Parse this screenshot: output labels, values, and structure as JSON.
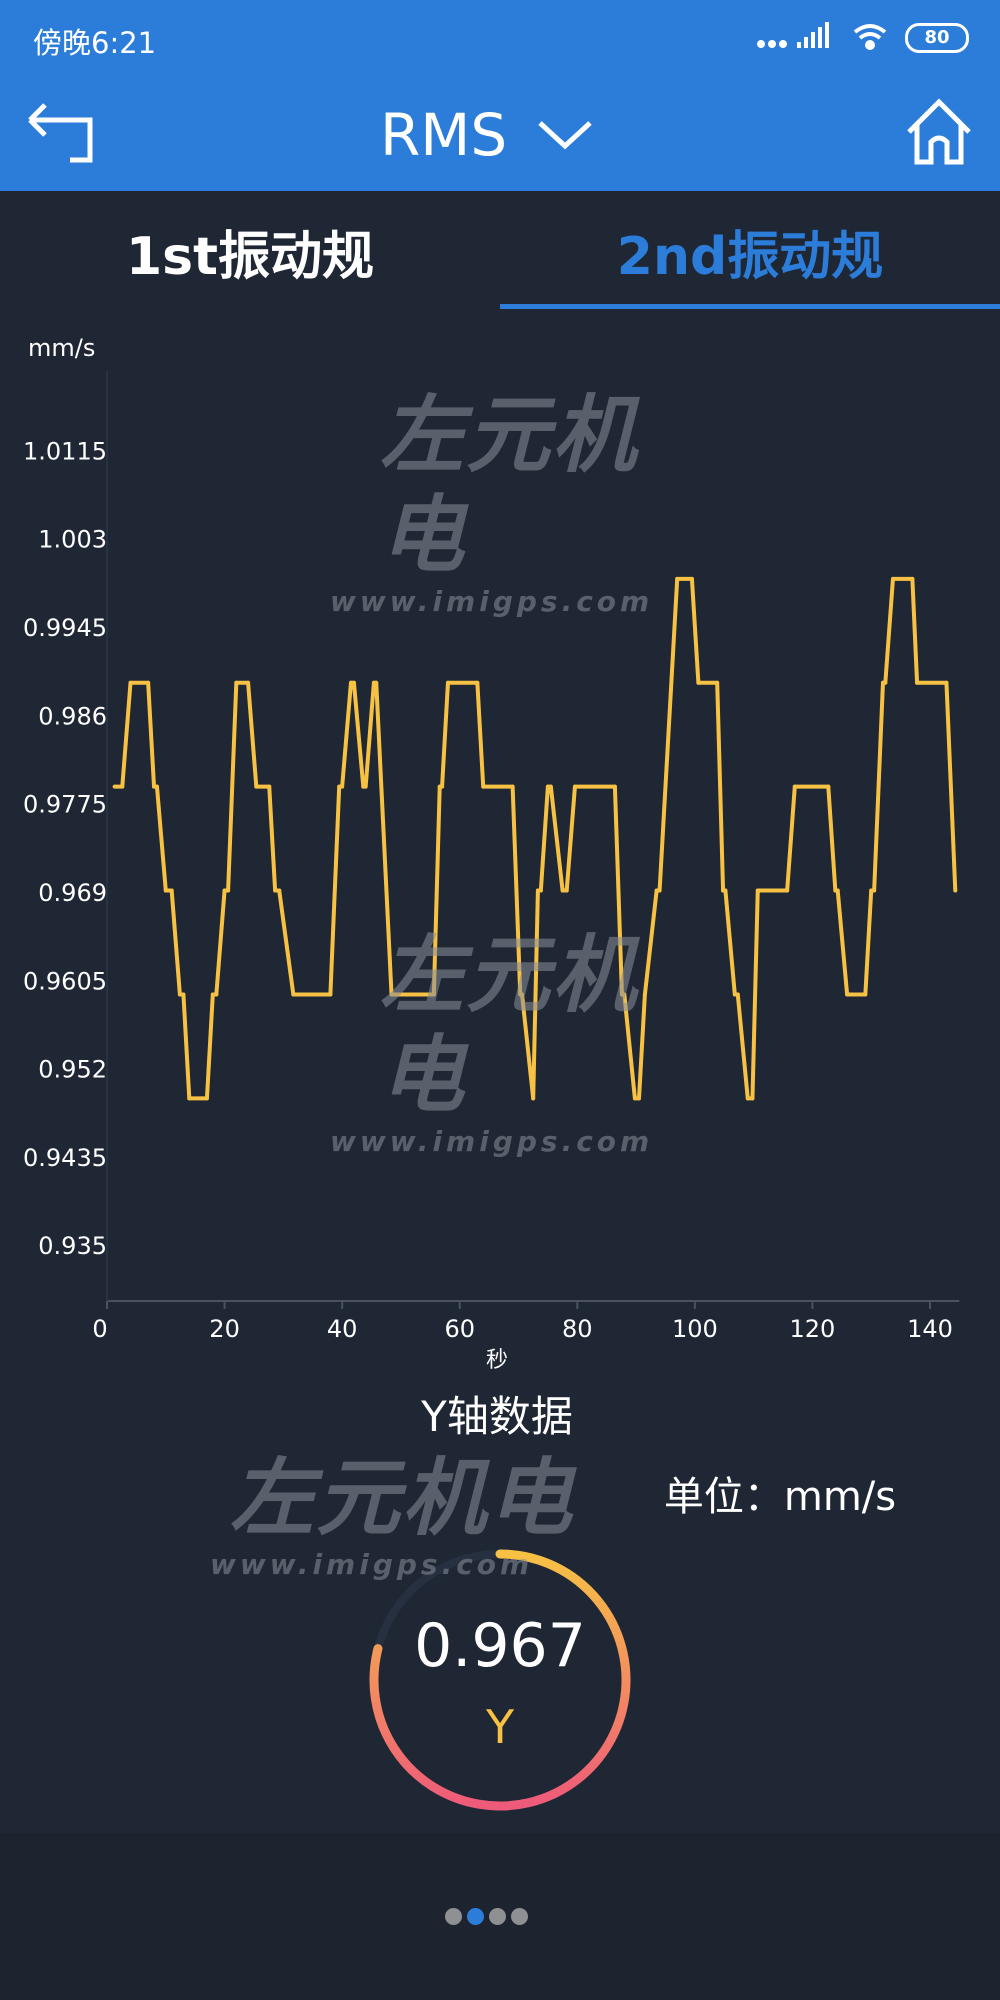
{
  "status_bar": {
    "time": "傍晚6:21",
    "battery": "80",
    "icons": [
      "dots-icon",
      "signal-icon",
      "wifi-icon",
      "battery-icon"
    ]
  },
  "header": {
    "title": "RMS",
    "back_icon": "back-arrow-icon",
    "dropdown_icon": "chevron-down-icon",
    "home_icon": "home-icon"
  },
  "tabs": [
    {
      "label": "1st振动规",
      "active": false
    },
    {
      "label": "2nd振动规",
      "active": true
    }
  ],
  "watermark": {
    "brand": "左元机电",
    "url": "www.imigps.com"
  },
  "colors": {
    "accent": "#2b7dd9",
    "line": "#f7c244",
    "background": "#1f2734",
    "gauge_start": "#f7c244",
    "gauge_end": "#ee5a7a"
  },
  "chart_data": {
    "type": "line",
    "ylabel": "mm/s",
    "xlabel": "秒",
    "title": "Y轴数据",
    "xlim": [
      0,
      145
    ],
    "ylim": [
      0.9305,
      1.02
    ],
    "xticks": [
      "0",
      "20",
      "40",
      "60",
      "80",
      "100",
      "120",
      "140"
    ],
    "yticks": [
      "1.0115",
      "1.003",
      "0.9945",
      "0.986",
      "0.9775",
      "0.969",
      "0.9605",
      "0.952",
      "0.9435",
      "0.935"
    ],
    "grid": false,
    "series": [
      {
        "points": [
          [
            1.3,
            0.98
          ],
          [
            2.6,
            0.98
          ],
          [
            4,
            0.99
          ],
          [
            7,
            0.99
          ],
          [
            8,
            0.98
          ],
          [
            8.5,
            0.98
          ],
          [
            10,
            0.97
          ],
          [
            11,
            0.97
          ],
          [
            12.4,
            0.96
          ],
          [
            13,
            0.96
          ],
          [
            14,
            0.95
          ],
          [
            17,
            0.95
          ],
          [
            18,
            0.96
          ],
          [
            18.6,
            0.96
          ],
          [
            20,
            0.97
          ],
          [
            20.6,
            0.97
          ],
          [
            22,
            0.99
          ],
          [
            24,
            0.99
          ],
          [
            25.4,
            0.98
          ],
          [
            27.6,
            0.98
          ],
          [
            28.6,
            0.97
          ],
          [
            29.3,
            0.97
          ],
          [
            31.7,
            0.96
          ],
          [
            38,
            0.96
          ],
          [
            39.5,
            0.98
          ],
          [
            40,
            0.98
          ],
          [
            41.5,
            0.99
          ],
          [
            42,
            0.99
          ],
          [
            43.6,
            0.98
          ],
          [
            44,
            0.98
          ],
          [
            45.4,
            0.99
          ],
          [
            45.8,
            0.99
          ],
          [
            48.4,
            0.96
          ],
          [
            55.6,
            0.96
          ],
          [
            56.6,
            0.98
          ],
          [
            57,
            0.98
          ],
          [
            58,
            0.99
          ],
          [
            63,
            0.99
          ],
          [
            64,
            0.98
          ],
          [
            69,
            0.98
          ],
          [
            70.3,
            0.96
          ],
          [
            70.6,
            0.96
          ],
          [
            72.5,
            0.95
          ],
          [
            73.3,
            0.97
          ],
          [
            73.8,
            0.97
          ],
          [
            75,
            0.98
          ],
          [
            75.5,
            0.98
          ],
          [
            77.5,
            0.97
          ],
          [
            78.2,
            0.97
          ],
          [
            79.6,
            0.98
          ],
          [
            86.4,
            0.98
          ],
          [
            87.6,
            0.96
          ],
          [
            88,
            0.96
          ],
          [
            89.8,
            0.95
          ],
          [
            90.5,
            0.95
          ],
          [
            91.5,
            0.96
          ],
          [
            93.5,
            0.97
          ],
          [
            94,
            0.97
          ],
          [
            97,
            1.0
          ],
          [
            99.5,
            1.0
          ],
          [
            100.6,
            0.99
          ],
          [
            103.8,
            0.99
          ],
          [
            104.8,
            0.97
          ],
          [
            105.2,
            0.97
          ],
          [
            106.8,
            0.96
          ],
          [
            107.3,
            0.96
          ],
          [
            109,
            0.95
          ],
          [
            109.8,
            0.95
          ],
          [
            110.7,
            0.97
          ],
          [
            115.7,
            0.97
          ],
          [
            117,
            0.98
          ],
          [
            122.7,
            0.98
          ],
          [
            123.9,
            0.97
          ],
          [
            124.3,
            0.97
          ],
          [
            125.9,
            0.96
          ],
          [
            129,
            0.96
          ],
          [
            130,
            0.97
          ],
          [
            130.5,
            0.97
          ],
          [
            132,
            0.99
          ],
          [
            132.4,
            0.99
          ],
          [
            133.7,
            1.0
          ],
          [
            137,
            1.0
          ],
          [
            137.8,
            0.99
          ],
          [
            142.8,
            0.99
          ],
          [
            144.3,
            0.97
          ]
        ]
      }
    ]
  },
  "unit_label": "单位：mm/s",
  "gauge": {
    "value": "0.967",
    "axis": "Y",
    "fill_fraction": 0.79
  },
  "pager": {
    "count": 4,
    "active_index": 1
  }
}
